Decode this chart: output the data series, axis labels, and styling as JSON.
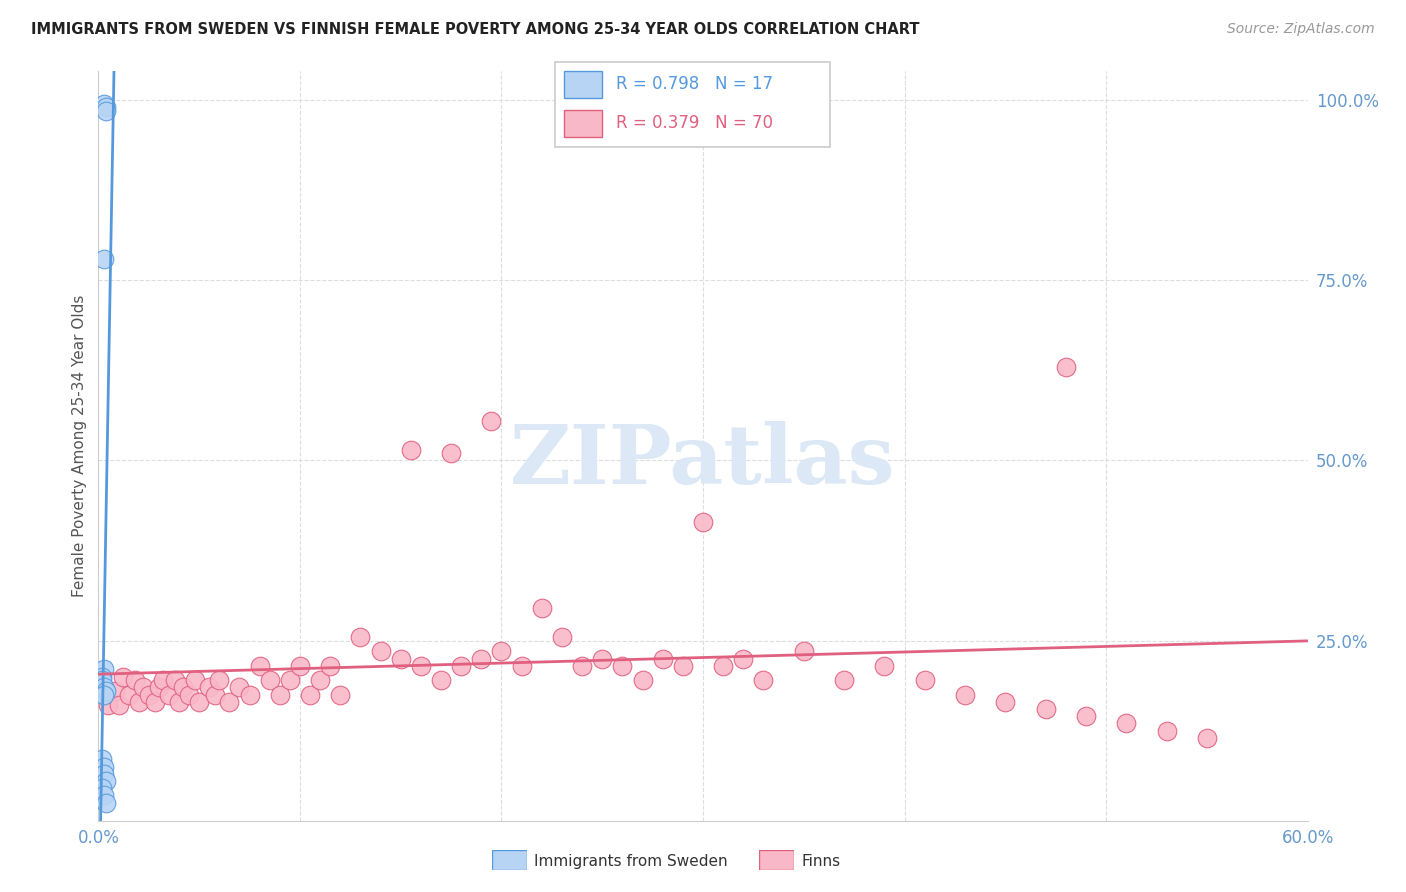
{
  "title": "IMMIGRANTS FROM SWEDEN VS FINNISH FEMALE POVERTY AMONG 25-34 YEAR OLDS CORRELATION CHART",
  "source": "Source: ZipAtlas.com",
  "ylabel": "Female Poverty Among 25-34 Year Olds",
  "sweden_R": 0.798,
  "sweden_N": 17,
  "finns_R": 0.379,
  "finns_N": 70,
  "sweden_color": "#b8d4f5",
  "sweden_edge_color": "#5599dd",
  "finns_color": "#f9b8c8",
  "finns_edge_color": "#e06080",
  "watermark_color": "#dce8f5",
  "xlim": [
    0.0,
    0.6
  ],
  "ylim": [
    0.0,
    1.04
  ],
  "grid_color": "#dddddd",
  "axis_label_color": "#6699cc",
  "sweden_x": [
    0.003,
    0.004,
    0.004,
    0.003,
    0.003,
    0.002,
    0.002,
    0.003,
    0.004,
    0.003,
    0.002,
    0.003,
    0.003,
    0.004,
    0.002,
    0.003,
    0.004
  ],
  "sweden_y": [
    0.995,
    0.99,
    0.985,
    0.78,
    0.21,
    0.2,
    0.195,
    0.185,
    0.18,
    0.175,
    0.085,
    0.075,
    0.065,
    0.055,
    0.045,
    0.035,
    0.025
  ],
  "finns_x": [
    0.005,
    0.008,
    0.01,
    0.012,
    0.015,
    0.018,
    0.02,
    0.022,
    0.025,
    0.028,
    0.03,
    0.032,
    0.035,
    0.038,
    0.04,
    0.042,
    0.045,
    0.048,
    0.05,
    0.055,
    0.058,
    0.06,
    0.065,
    0.07,
    0.075,
    0.08,
    0.085,
    0.09,
    0.095,
    0.1,
    0.105,
    0.11,
    0.115,
    0.12,
    0.13,
    0.14,
    0.15,
    0.16,
    0.17,
    0.18,
    0.19,
    0.2,
    0.21,
    0.22,
    0.23,
    0.24,
    0.25,
    0.26,
    0.27,
    0.28,
    0.29,
    0.3,
    0.31,
    0.32,
    0.33,
    0.35,
    0.37,
    0.39,
    0.41,
    0.43,
    0.45,
    0.47,
    0.49,
    0.51,
    0.53,
    0.55,
    0.155,
    0.175,
    0.195,
    0.48
  ],
  "finns_y": [
    0.16,
    0.18,
    0.16,
    0.2,
    0.175,
    0.195,
    0.165,
    0.185,
    0.175,
    0.165,
    0.185,
    0.195,
    0.175,
    0.195,
    0.165,
    0.185,
    0.175,
    0.195,
    0.165,
    0.185,
    0.175,
    0.195,
    0.165,
    0.185,
    0.175,
    0.215,
    0.195,
    0.175,
    0.195,
    0.215,
    0.175,
    0.195,
    0.215,
    0.175,
    0.255,
    0.235,
    0.225,
    0.215,
    0.195,
    0.215,
    0.225,
    0.235,
    0.215,
    0.295,
    0.255,
    0.215,
    0.225,
    0.215,
    0.195,
    0.225,
    0.215,
    0.415,
    0.215,
    0.225,
    0.195,
    0.235,
    0.195,
    0.215,
    0.195,
    0.175,
    0.165,
    0.155,
    0.145,
    0.135,
    0.125,
    0.115,
    0.515,
    0.51,
    0.555,
    0.63
  ]
}
